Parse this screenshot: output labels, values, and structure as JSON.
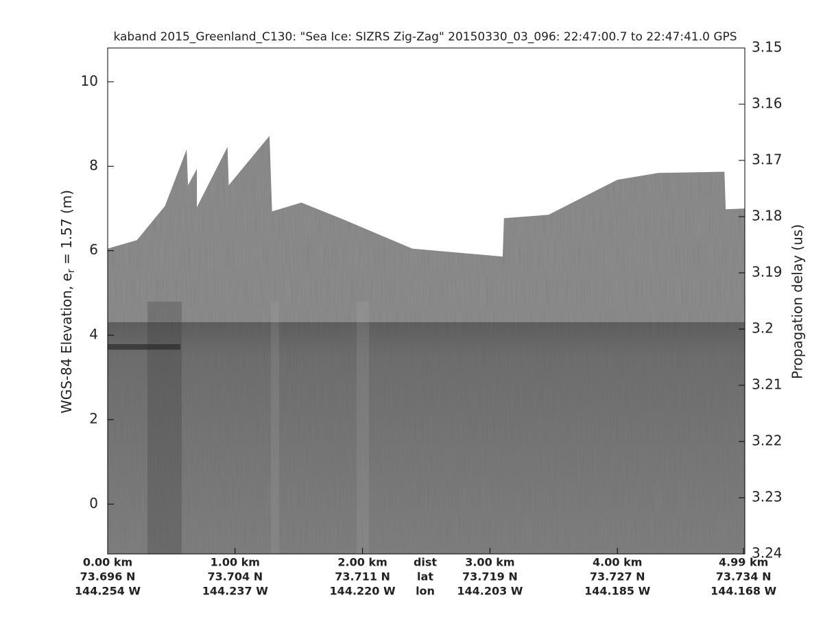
{
  "chart_data": {
    "type": "echogram",
    "title": "kaband 2015_Greenland_C130: \"Sea Ice: SIZRS Zig-Zag\"  20150330_03_096: 22:47:00.7 to 22:47:41.0 GPS",
    "y_label": "WGS-84 Elevation, e",
    "y_label_sub": "r",
    "y_label_rest": " = 1.57 (m)",
    "y2_label": "Propagation delay (us)",
    "x": [
      0,
      0.23,
      0.45,
      0.62,
      0.63,
      0.7,
      0.7,
      0.94,
      0.95,
      1.27,
      1.28,
      1.29,
      1.52,
      1.85,
      2.39,
      3.1,
      3.11,
      3.46,
      4.0,
      4.32,
      4.84,
      4.85,
      5.0
    ],
    "values": [
      6.05,
      6.25,
      7.06,
      8.4,
      7.55,
      7.94,
      7.03,
      8.46,
      7.55,
      8.72,
      7.84,
      6.93,
      7.14,
      6.74,
      6.05,
      5.86,
      6.77,
      6.85,
      7.68,
      7.84,
      7.87,
      6.98,
      7.0
    ],
    "color": "#8e8e8e",
    "xlim": [
      0,
      5.0
    ],
    "xticks": [
      {
        "value": 0,
        "label": "0.00 km"
      },
      {
        "value": 1,
        "label": "1.00 km"
      },
      {
        "value": 2,
        "label": "2.00 km"
      },
      {
        "value": 3,
        "label": "3.00 km"
      },
      {
        "value": 4,
        "label": "4.00 km"
      },
      {
        "value": 4.99,
        "label": "4.99 km"
      }
    ],
    "lat_labels": [
      "73.696 N",
      "73.704 N",
      "73.711 N",
      "73.719 N",
      "73.727 N",
      "73.734 N"
    ],
    "lon_labels": [
      "144.254 W",
      "144.237 W",
      "144.220 W",
      "144.203 W",
      "144.185 W",
      "144.168 W"
    ],
    "row_labels": [
      "dist",
      "lat",
      "lon"
    ],
    "ylim": [
      -1.18,
      10.8
    ],
    "yticks": [
      0,
      2,
      4,
      6,
      8,
      10
    ],
    "y2lim": [
      3.24,
      3.15
    ],
    "y2ticks": [
      3.15,
      3.16,
      3.17,
      3.18,
      3.19,
      3.2,
      3.21,
      3.22,
      3.23,
      3.24
    ]
  }
}
